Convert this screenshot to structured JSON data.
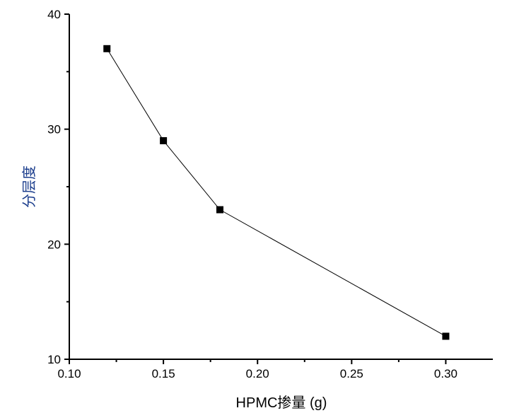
{
  "chart_data": {
    "type": "line",
    "title": "",
    "xlabel": "HPMC掺量 (g)",
    "ylabel": "分层度",
    "xlim": [
      0.1,
      0.325
    ],
    "ylim": [
      10,
      40
    ],
    "xticks": [
      "0.10",
      "0.15",
      "0.20",
      "0.25",
      "0.30"
    ],
    "yticks": [
      "10",
      "20",
      "30",
      "40"
    ],
    "grid": false,
    "marker": "square",
    "series": [
      {
        "name": "分层度",
        "x": [
          0.12,
          0.15,
          0.18,
          0.3
        ],
        "y": [
          37,
          29,
          23,
          12
        ],
        "color": "#000000"
      }
    ]
  }
}
